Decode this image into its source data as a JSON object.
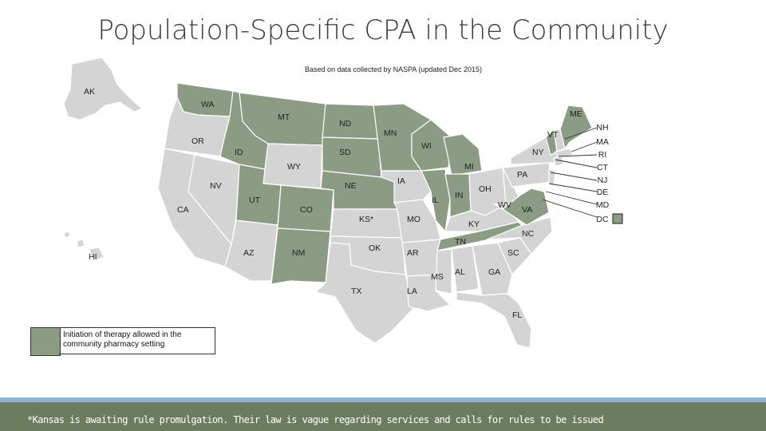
{
  "title": "Population-Specific CPA in the Community",
  "subtitle": "Based on data collected by NASPA (updated Dec 2015)",
  "colors": {
    "allowed": "#8c9b83",
    "not_allowed": "#d4d4d4",
    "border": "#ffffff",
    "footer": "#6b7d5e",
    "accent_bar": "#8fb2d2"
  },
  "states": {
    "AK": "AK",
    "HI": "HI",
    "WA": "WA",
    "OR": "OR",
    "CA": "CA",
    "NV": "NV",
    "ID": "ID",
    "MT": "MT",
    "WY": "WY",
    "UT": "UT",
    "AZ": "AZ",
    "CO": "CO",
    "NM": "NM",
    "ND": "ND",
    "SD": "SD",
    "NE": "NE",
    "KS": "KS*",
    "OK": "OK",
    "TX": "TX",
    "MN": "MN",
    "IA": "IA",
    "MO": "MO",
    "AR": "AR",
    "LA": "LA",
    "WI": "WI",
    "IL": "IL",
    "MI": "MI",
    "IN": "IN",
    "OH": "OH",
    "KY": "KY",
    "TN": "TN",
    "MS": "MS",
    "AL": "AL",
    "GA": "GA",
    "FL": "FL",
    "SC": "SC",
    "NC": "NC",
    "VA": "VA",
    "WV": "WV",
    "PA": "PA",
    "NY": "NY",
    "VT": "VT",
    "ME": "ME"
  },
  "allowed_states": [
    "WA",
    "ID",
    "MT",
    "UT",
    "NM",
    "ND",
    "MN",
    "WI",
    "MI",
    "IN",
    "NE",
    "SD",
    "IL",
    "TN",
    "VA",
    "VT",
    "ME",
    "CO"
  ],
  "northeast_list": [
    "NH",
    "MA",
    "RI",
    "CT",
    "NJ",
    "DE",
    "MD",
    "DC"
  ],
  "legend": {
    "label": "Initiation of therapy allowed in the community pharmacy setting"
  },
  "footnote": "*Kansas is awaiting rule promulgation. Their law is vague regarding services and calls for rules to be issued"
}
